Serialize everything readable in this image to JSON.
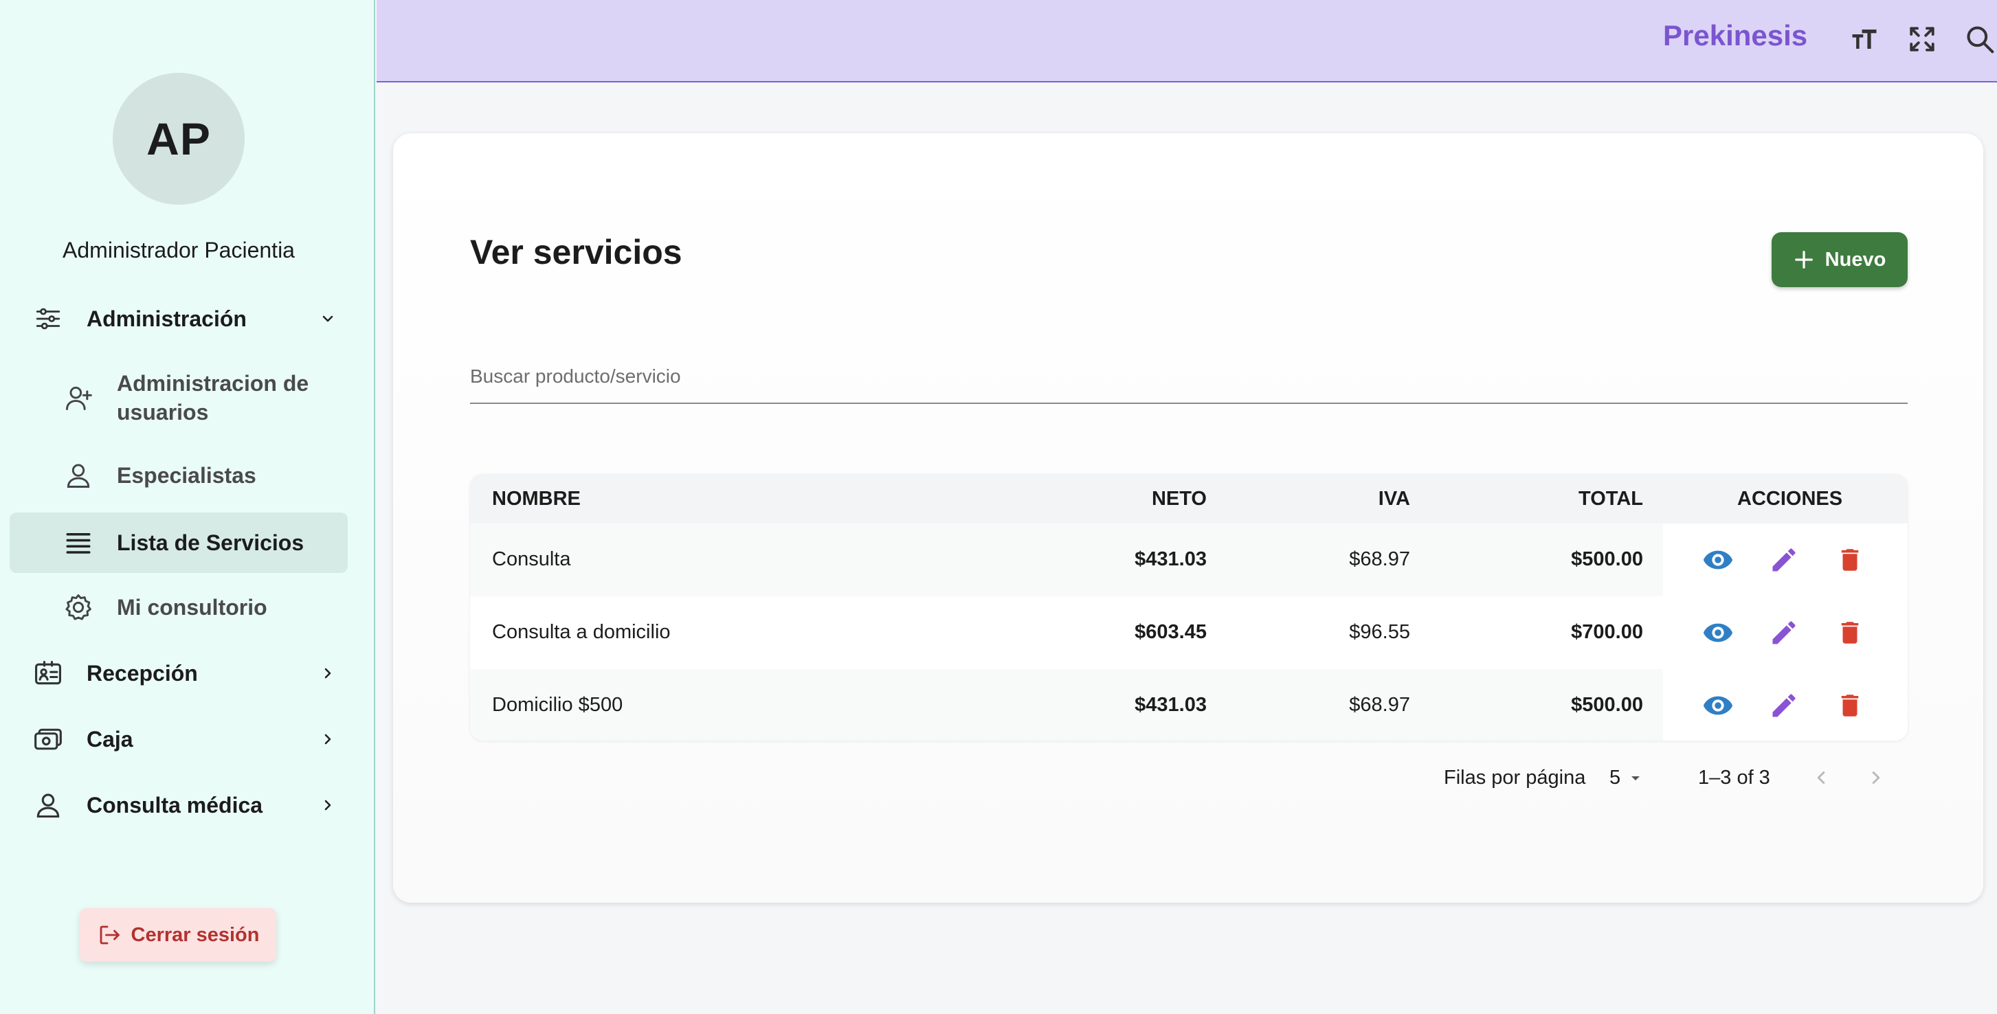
{
  "sidebar": {
    "avatar_initials": "AP",
    "user_name": "Administrador Pacientia",
    "sections": [
      {
        "label": "Administración",
        "icon": "sliders-icon",
        "expanded": true
      },
      {
        "label": "Recepción",
        "icon": "id-card-icon",
        "expanded": false
      },
      {
        "label": "Caja",
        "icon": "cash-icon",
        "expanded": false
      },
      {
        "label": "Consulta médica",
        "icon": "person-icon",
        "expanded": false
      }
    ],
    "admin_items": [
      {
        "label": "Administracion de usuarios",
        "icon": "add-user-icon"
      },
      {
        "label": "Especialistas",
        "icon": "person-icon"
      },
      {
        "label": "Lista de Servicios",
        "icon": "list-icon",
        "active": true
      },
      {
        "label": "Mi consultorio",
        "icon": "gear-icon"
      }
    ],
    "logout_label": "Cerrar sesión"
  },
  "topbar": {
    "brand": "Prekinesis",
    "icons": [
      "text-size-icon",
      "fullscreen-icon",
      "search-icon"
    ]
  },
  "main": {
    "title": "Ver servicios",
    "new_button_label": "Nuevo",
    "search_placeholder": "Buscar producto/servicio",
    "search_value": ""
  },
  "table": {
    "headers": [
      "NOMBRE",
      "NETO",
      "IVA",
      "TOTAL",
      "ACCIONES"
    ],
    "rows": [
      {
        "nombre": "Consulta",
        "neto": "$431.03",
        "iva": "$68.97",
        "total": "$500.00"
      },
      {
        "nombre": "Consulta a domicilio",
        "neto": "$603.45",
        "iva": "$96.55",
        "total": "$700.00"
      },
      {
        "nombre": "Domicilio $500",
        "neto": "$431.03",
        "iva": "$68.97",
        "total": "$500.00"
      }
    ],
    "action_icons": [
      "eye-icon",
      "pencil-icon",
      "trash-icon"
    ]
  },
  "pagination": {
    "rows_per_page_label": "Filas por página",
    "rows_per_page": "5",
    "range": "1–3 of 3"
  },
  "colors": {
    "sidebar_bg": "#eafcf8",
    "topbar_bg": "#dcd4f6",
    "brand": "#7b55cf",
    "new_button": "#3e7b3e",
    "view_icon": "#2f7fc4",
    "edit_icon": "#8a52d4",
    "delete_icon": "#d9412f",
    "logout_text": "#b2322f"
  }
}
